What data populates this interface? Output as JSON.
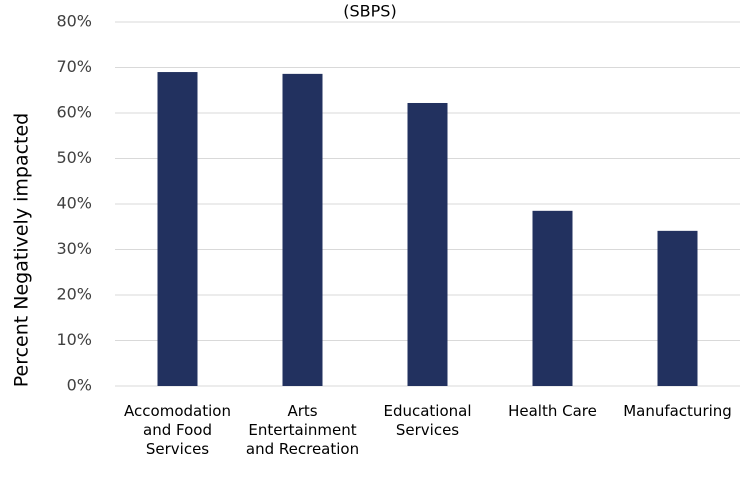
{
  "chart_data": {
    "type": "bar",
    "title": "(SBPS)",
    "y_label": "Percent Negatively impacted",
    "categories": [
      "Accomodation and Food Services",
      "Arts Entertainment and Recreation",
      "Educational Services",
      "Health Care",
      "Manufacturing"
    ],
    "values": [
      69.0,
      68.6,
      62.2,
      38.5,
      34.1
    ],
    "color": "#22315f",
    "ylim": [
      0,
      80
    ],
    "yticks": [
      {
        "value": 0,
        "label": "0%"
      },
      {
        "value": 10,
        "label": "10%"
      },
      {
        "value": 20,
        "label": "20%"
      },
      {
        "value": 30,
        "label": "30%"
      },
      {
        "value": 40,
        "label": "40%"
      },
      {
        "value": 50,
        "label": "50%"
      },
      {
        "value": 60,
        "label": "60%"
      },
      {
        "value": 70,
        "label": "70%"
      },
      {
        "value": 80,
        "label": "80%"
      }
    ],
    "grid": true
  }
}
